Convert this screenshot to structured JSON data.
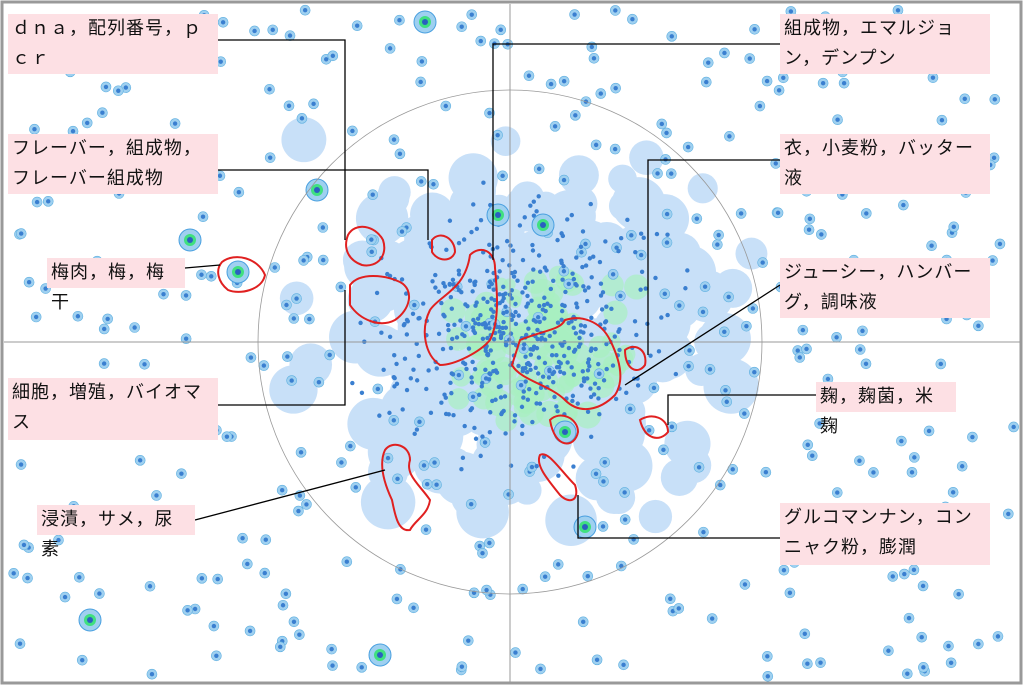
{
  "labels": [
    {
      "text": "ｄｎａ，配列番号，ｐｃｒ"
    },
    {
      "text": "フレーバー，組成物，フレーバー組成物"
    },
    {
      "text": "梅肉，梅，梅干"
    },
    {
      "text": "細胞，増殖，バイオマス"
    },
    {
      "text": "浸漬，サメ，尿素"
    },
    {
      "text": "組成物，エマルジョン，デンプン"
    },
    {
      "text": "衣，小麦粉，バッター液"
    },
    {
      "text": "ジューシー，ハンバーグ，調味液"
    },
    {
      "text": "麹，麹菌，米麹"
    },
    {
      "text": "グルコマンナン，コンニャク粉，膨潤"
    }
  ]
}
